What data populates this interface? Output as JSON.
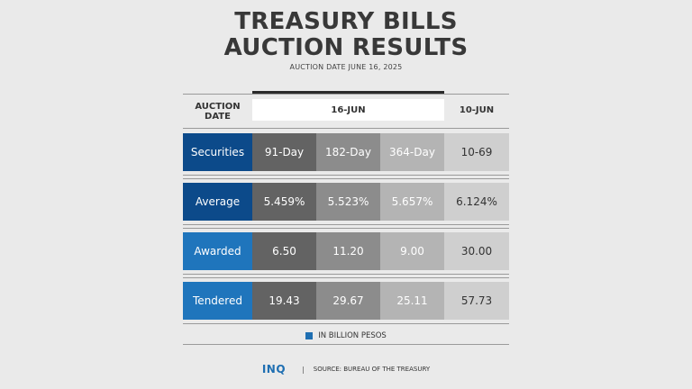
{
  "title_line1": "TREASURY BILLS",
  "title_line2": "AUCTION RESULTS",
  "subtitle": "AUCTION DATE JUNE 16, 2025",
  "chart_data": {
    "type": "table",
    "header": {
      "label_line1": "AUCTION",
      "label_line2": "DATE",
      "current_date": "16-JUN",
      "previous_date": "10-JUN"
    },
    "rows": [
      {
        "label": "Securities",
        "values": [
          "91-Day",
          "182-Day",
          "364-Day",
          "10-69"
        ],
        "label_color": "#0c4a8a"
      },
      {
        "label": "Average",
        "values": [
          "5.459%",
          "5.523%",
          "5.657%",
          "6.124%"
        ],
        "label_color": "#0c4a8a"
      },
      {
        "label": "Awarded",
        "values": [
          "6.50",
          "11.20",
          "9.00",
          "30.00"
        ],
        "label_color": "#1f75bc"
      },
      {
        "label": "Tendered",
        "values": [
          "19.43",
          "29.67",
          "25.11",
          "57.73"
        ],
        "label_color": "#1f75bc"
      }
    ],
    "legend": "IN BILLION PESOS"
  },
  "footer": {
    "logo": "INQ",
    "source": "SOURCE: BUREAU OF THE TREASURY"
  },
  "colors": {
    "col_current_1": "#636363",
    "col_current_2": "#8c8c8c",
    "col_current_3": "#b4b4b4",
    "col_previous": "#cfcfcf",
    "legend_blue": "#1f6fb2"
  }
}
